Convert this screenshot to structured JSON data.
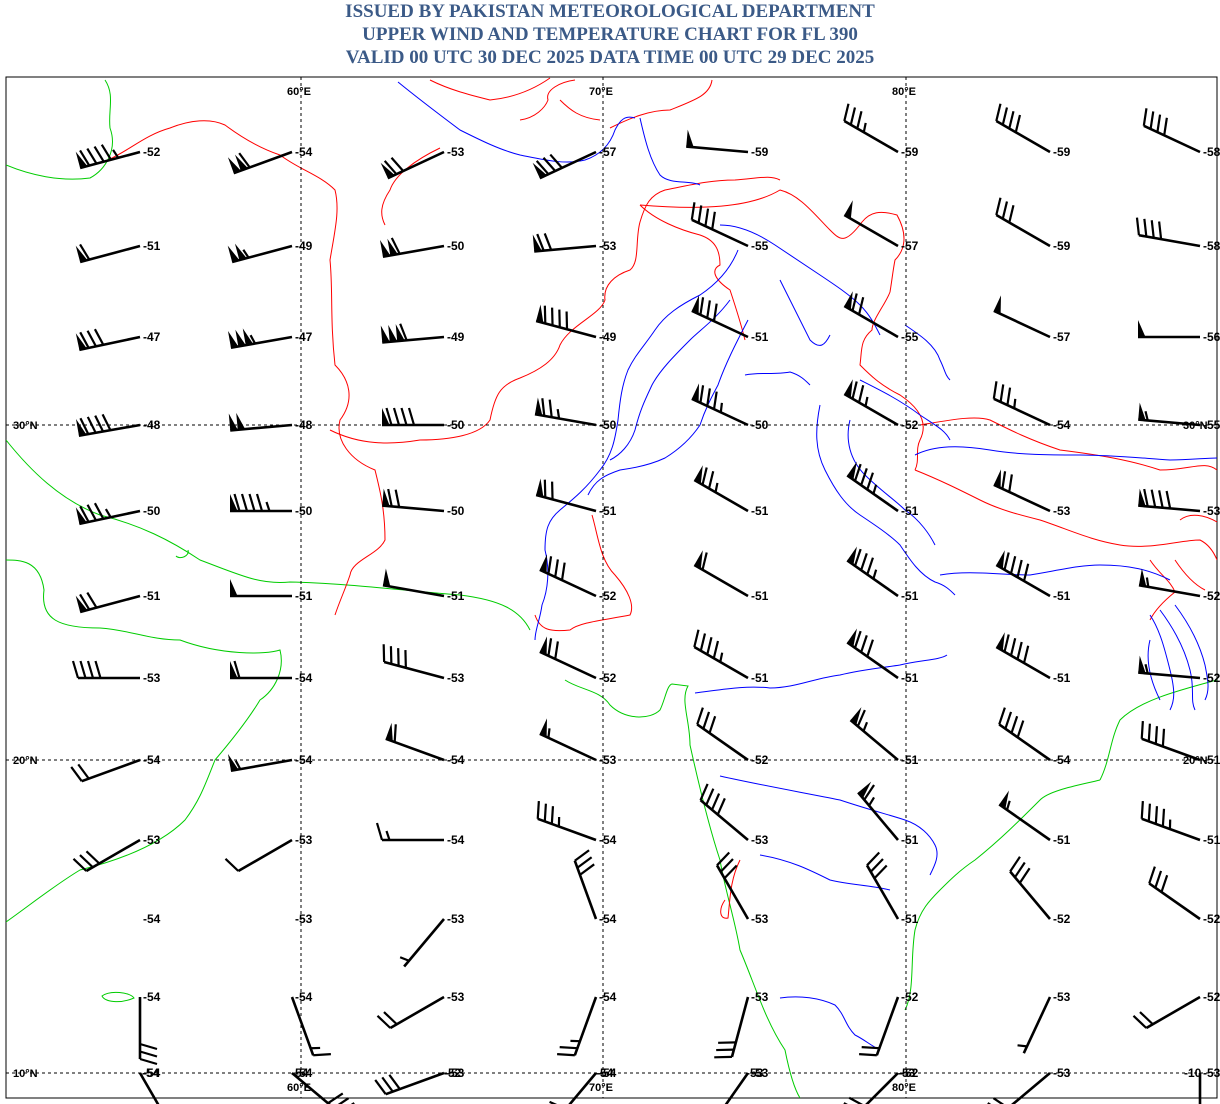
{
  "header": {
    "line1": "ISSUED BY PAKISTAN METEOROLOGICAL DEPARTMENT",
    "line2": "UPPER WIND AND TEMPERATURE CHART FOR FL 390",
    "line3": "VALID 00 UTC 30 DEC 2025 DATA TIME 00 UTC 29 DEC 2025"
  },
  "colors": {
    "title": "#3b5a87",
    "border": "#ff0000",
    "coast": "#00cc00",
    "river": "#0000ff",
    "grid": "#000000"
  },
  "grid": {
    "lon_labels": [
      "60°E",
      "70°E",
      "80°E"
    ],
    "lat_labels": [
      "30°N",
      "20°N",
      "10°N"
    ]
  },
  "map_layers": [
    "international-borders",
    "coastlines",
    "rivers",
    "graticule"
  ],
  "stations": [
    {
      "temp": "-52",
      "dir": 255,
      "speed": 95
    },
    {
      "temp": "-54",
      "dir": 250,
      "speed": 110
    },
    {
      "temp": "-53",
      "dir": 245,
      "speed": 70
    },
    {
      "temp": "-57",
      "dir": 245,
      "speed": 80
    },
    {
      "temp": "-59",
      "dir": 275,
      "speed": 50
    },
    {
      "temp": "-59",
      "dir": 300,
      "speed": 35
    },
    {
      "temp": "-59",
      "dir": 300,
      "speed": 40
    },
    {
      "temp": "-58",
      "dir": 295,
      "speed": 40
    },
    {
      "temp": "-51",
      "dir": 255,
      "speed": 60
    },
    {
      "temp": "-49",
      "dir": 255,
      "speed": 105
    },
    {
      "temp": "-50",
      "dir": 260,
      "speed": 110
    },
    {
      "temp": "-53",
      "dir": 265,
      "speed": 70
    },
    {
      "temp": "-55",
      "dir": 295,
      "speed": 40
    },
    {
      "temp": "-57",
      "dir": 300,
      "speed": 50
    },
    {
      "temp": "-59",
      "dir": 300,
      "speed": 30
    },
    {
      "temp": "-58",
      "dir": 280,
      "speed": 40
    },
    {
      "temp": "-47",
      "dir": 258,
      "speed": 80
    },
    {
      "temp": "-47",
      "dir": 260,
      "speed": 155
    },
    {
      "temp": "-49",
      "dir": 265,
      "speed": 160
    },
    {
      "temp": "-49",
      "dir": 285,
      "speed": 90
    },
    {
      "temp": "-51",
      "dir": 295,
      "speed": 80
    },
    {
      "temp": "-55",
      "dir": 300,
      "speed": 70
    },
    {
      "temp": "-57",
      "dir": 295,
      "speed": 50
    },
    {
      "temp": "-56",
      "dir": 270,
      "speed": 50
    },
    {
      "temp": "-48",
      "dir": 260,
      "speed": 90
    },
    {
      "temp": "-48",
      "dir": 265,
      "speed": 100
    },
    {
      "temp": "-50",
      "dir": 270,
      "speed": 90
    },
    {
      "temp": "-50",
      "dir": 280,
      "speed": 75
    },
    {
      "temp": "-50",
      "dir": 295,
      "speed": 85
    },
    {
      "temp": "-52",
      "dir": 300,
      "speed": 75
    },
    {
      "temp": "-54",
      "dir": 295,
      "speed": 35
    },
    {
      "temp": "-55",
      "dir": 275,
      "speed": 55
    },
    {
      "temp": "-50",
      "dir": 258,
      "speed": 85
    },
    {
      "temp": "-50",
      "dir": 270,
      "speed": 95
    },
    {
      "temp": "-50",
      "dir": 275,
      "speed": 70
    },
    {
      "temp": "-51",
      "dir": 285,
      "speed": 70
    },
    {
      "temp": "-51",
      "dir": 300,
      "speed": 75
    },
    {
      "temp": "-51",
      "dir": 305,
      "speed": 85
    },
    {
      "temp": "-53",
      "dir": 295,
      "speed": 70
    },
    {
      "temp": "-53",
      "dir": 275,
      "speed": 90
    },
    {
      "temp": "-51",
      "dir": 255,
      "speed": 70
    },
    {
      "temp": "-51",
      "dir": 270,
      "speed": 50
    },
    {
      "temp": "-51",
      "dir": 280,
      "speed": 50
    },
    {
      "temp": "-52",
      "dir": 295,
      "speed": 80
    },
    {
      "temp": "-51",
      "dir": 300,
      "speed": 60
    },
    {
      "temp": "-51",
      "dir": 305,
      "speed": 85
    },
    {
      "temp": "-51",
      "dir": 300,
      "speed": 90
    },
    {
      "temp": "-52",
      "dir": 280,
      "speed": 55
    },
    {
      "temp": "-53",
      "dir": 270,
      "speed": 40
    },
    {
      "temp": "-54",
      "dir": 270,
      "speed": 60
    },
    {
      "temp": "-53",
      "dir": 285,
      "speed": 40
    },
    {
      "temp": "-52",
      "dir": 295,
      "speed": 70
    },
    {
      "temp": "-51",
      "dir": 300,
      "speed": 45
    },
    {
      "temp": "-51",
      "dir": 305,
      "speed": 80
    },
    {
      "temp": "-51",
      "dir": 300,
      "speed": 90
    },
    {
      "temp": "-52",
      "dir": 275,
      "speed": 55
    },
    {
      "temp": "-54",
      "dir": 250,
      "speed": 20
    },
    {
      "temp": "-54",
      "dir": 260,
      "speed": 55
    },
    {
      "temp": "-54",
      "dir": 290,
      "speed": 60
    },
    {
      "temp": "-53",
      "dir": 295,
      "speed": 55
    },
    {
      "temp": "-52",
      "dir": 305,
      "speed": 30
    },
    {
      "temp": "-51",
      "dir": 310,
      "speed": 65
    },
    {
      "temp": "-54",
      "dir": 305,
      "speed": 40
    },
    {
      "temp": "-51",
      "dir": 290,
      "speed": 40
    },
    {
      "temp": "-53",
      "dir": 240,
      "speed": 30
    },
    {
      "temp": "-53",
      "dir": 240,
      "speed": 10
    },
    {
      "temp": "-54",
      "dir": 270,
      "speed": 15
    },
    {
      "temp": "-54",
      "dir": 290,
      "speed": 35
    },
    {
      "temp": "-53",
      "dir": 310,
      "speed": 40
    },
    {
      "temp": "-51",
      "dir": 320,
      "speed": 65
    },
    {
      "temp": "-51",
      "dir": 305,
      "speed": 55
    },
    {
      "temp": "-51",
      "dir": 290,
      "speed": 45
    },
    {
      "temp": "-54",
      "dir": 0,
      "speed": 0
    },
    {
      "temp": "-53",
      "dir": 0,
      "speed": 0
    },
    {
      "temp": "-53",
      "dir": 220,
      "speed": 5
    },
    {
      "temp": "-54",
      "dir": 340,
      "speed": 30
    },
    {
      "temp": "-53",
      "dir": 330,
      "speed": 30
    },
    {
      "temp": "-51",
      "dir": 330,
      "speed": 30
    },
    {
      "temp": "-52",
      "dir": 320,
      "speed": 30
    },
    {
      "temp": "-52",
      "dir": 305,
      "speed": 30
    },
    {
      "temp": "-54",
      "dir": 180,
      "speed": 30
    },
    {
      "temp": "-54",
      "dir": 160,
      "speed": 15
    },
    {
      "temp": "-53",
      "dir": 240,
      "speed": 20
    },
    {
      "temp": "-54",
      "dir": 200,
      "speed": 25
    },
    {
      "temp": "-53",
      "dir": 195,
      "speed": 30
    },
    {
      "temp": "-52",
      "dir": 200,
      "speed": 20
    },
    {
      "temp": "-53",
      "dir": 205,
      "speed": 5
    },
    {
      "temp": "-52",
      "dir": 240,
      "speed": 20
    },
    {
      "temp": "-54",
      "dir": 150,
      "speed": 30
    },
    {
      "temp": "-54",
      "dir": 130,
      "speed": 30
    },
    {
      "temp": "-53",
      "dir": 250,
      "speed": 30
    },
    {
      "temp": "-54",
      "dir": 220,
      "speed": 30
    },
    {
      "temp": "-53",
      "dir": 215,
      "speed": 30
    },
    {
      "temp": "-52",
      "dir": 225,
      "speed": 30
    },
    {
      "temp": "-53",
      "dir": 230,
      "speed": 20
    },
    {
      "temp": "-53",
      "dir": 180,
      "speed": 20
    }
  ],
  "extra_labels": [
    "-52",
    "-54",
    "-54",
    "-54",
    "-53",
    "-53",
    "-10"
  ]
}
